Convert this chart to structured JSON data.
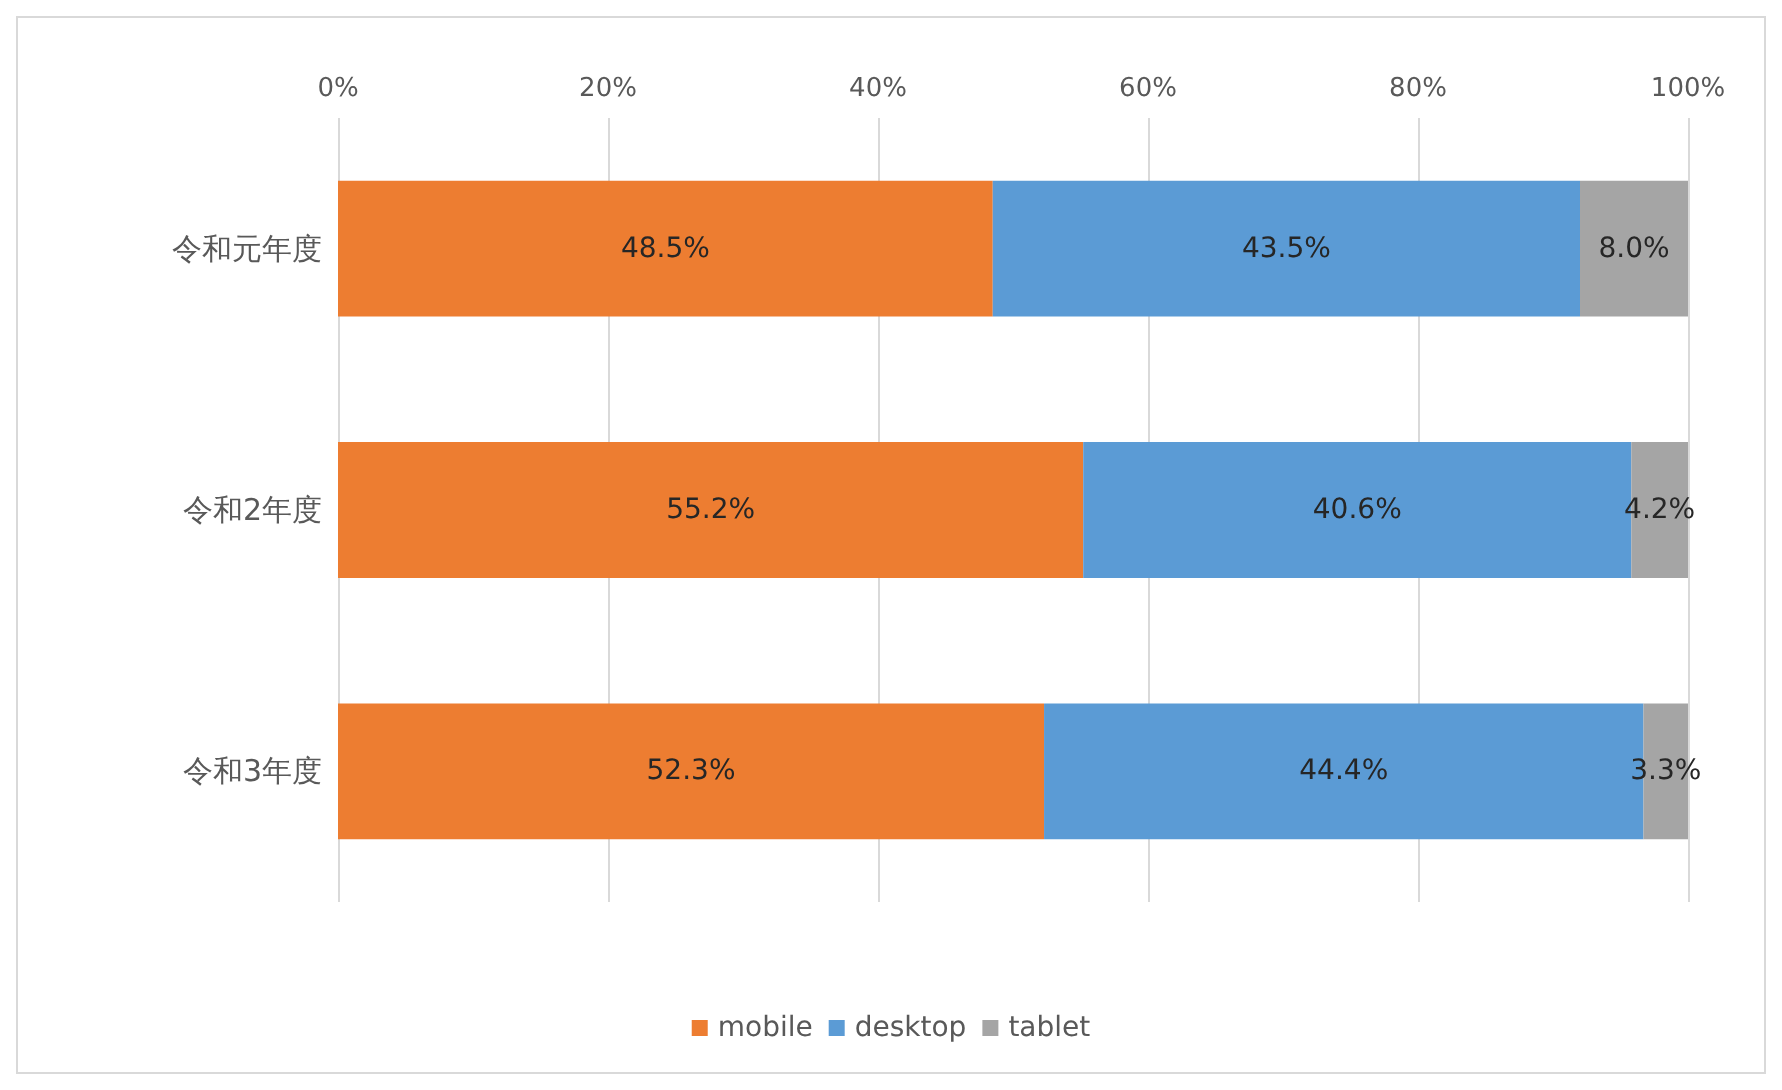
{
  "chart_data": {
    "type": "bar",
    "orientation": "horizontal",
    "stacked": true,
    "categories": [
      "令和元年度",
      "令和2年度",
      "令和3年度"
    ],
    "series": [
      {
        "name": "mobile",
        "color": "#ed7d31",
        "values": [
          48.5,
          55.2,
          52.3
        ],
        "value_labels": [
          "48.5%",
          "55.2%",
          "52.3%"
        ]
      },
      {
        "name": "desktop",
        "color": "#5b9bd5",
        "values": [
          43.5,
          40.6,
          44.4
        ],
        "value_labels": [
          "43.5%",
          "40.6%",
          "44.4%"
        ]
      },
      {
        "name": "tablet",
        "color": "#a5a5a5",
        "values": [
          8.0,
          4.2,
          3.3
        ],
        "value_labels": [
          "8.0%",
          "4.2%",
          "3.3%"
        ]
      }
    ],
    "xlim": [
      0,
      100
    ],
    "xticks": [
      {
        "value": 0,
        "label": "0%"
      },
      {
        "value": 20,
        "label": "20%"
      },
      {
        "value": 40,
        "label": "40%"
      },
      {
        "value": 60,
        "label": "60%"
      },
      {
        "value": 80,
        "label": "80%"
      },
      {
        "value": 100,
        "label": "100%"
      }
    ],
    "grid": "x",
    "legend": "bottom"
  }
}
